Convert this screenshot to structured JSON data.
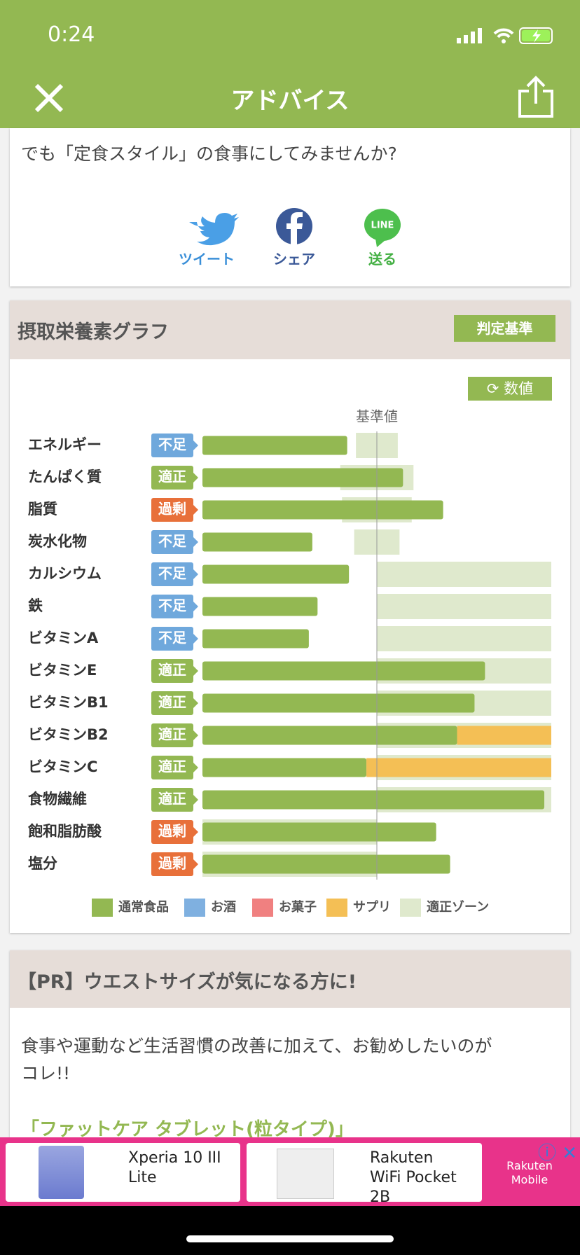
{
  "status_bar": {
    "time": "0:24"
  },
  "header": {
    "title": "アドバイス"
  },
  "advice": {
    "text": "でも「定食スタイル」の食事にしてみませんか?",
    "line_icon": "LINE",
    "share": [
      {
        "label": "ツイート"
      },
      {
        "label": "シェア"
      },
      {
        "label": "送る"
      }
    ]
  },
  "chart_data": {
    "type": "bar",
    "orientation": "horizontal",
    "title": "摂取栄養素グラフ",
    "criteria_button": "判定基準",
    "toggle_button": "数値",
    "reference_label": "基準値",
    "reference": 100,
    "xlim": [
      0,
      200
    ],
    "categories": [
      "エネルギー",
      "たんぱく質",
      "脂質",
      "炭水化物",
      "カルシウム",
      "鉄",
      "ビタミンA",
      "ビタミンE",
      "ビタミンB1",
      "ビタミンB2",
      "ビタミンC",
      "食物繊維",
      "飽和脂肪酸",
      "塩分"
    ],
    "status": [
      "不足",
      "適正",
      "過剰",
      "不足",
      "不足",
      "不足",
      "不足",
      "適正",
      "適正",
      "適正",
      "適正",
      "適正",
      "過剰",
      "過剰"
    ],
    "status_colors": [
      "#6fa8dc",
      "#93b852",
      "#e8703a",
      "#6fa8dc",
      "#6fa8dc",
      "#6fa8dc",
      "#6fa8dc",
      "#93b852",
      "#93b852",
      "#93b852",
      "#93b852",
      "#93b852",
      "#e8703a",
      "#e8703a"
    ],
    "series": [
      {
        "name": "通常食品",
        "color": "#93b852",
        "values": [
          83,
          115,
          138,
          63,
          84,
          66,
          61,
          162,
          156,
          146,
          94,
          196,
          134,
          142
        ]
      },
      {
        "name": "お酒",
        "color": "#7fb0e0",
        "values": [
          0,
          0,
          0,
          0,
          0,
          0,
          0,
          0,
          0,
          0,
          0,
          0,
          0,
          0
        ]
      },
      {
        "name": "お菓子",
        "color": "#f08080",
        "values": [
          0,
          0,
          0,
          0,
          0,
          0,
          0,
          0,
          0,
          0,
          0,
          0,
          0,
          0
        ]
      },
      {
        "name": "サプリ",
        "color": "#f4bf55",
        "values": [
          0,
          0,
          0,
          0,
          0,
          0,
          0,
          0,
          0,
          54,
          106,
          0,
          0,
          0
        ]
      }
    ],
    "zone_name": "適正ゾーン",
    "zone_color": "#dfe9cd",
    "zones": [
      [
        88,
        112
      ],
      [
        79,
        121
      ],
      [
        80,
        120
      ],
      [
        87,
        113
      ],
      [
        100,
        200
      ],
      [
        100,
        200
      ],
      [
        100,
        200
      ],
      [
        100,
        200
      ],
      [
        100,
        200
      ],
      [
        100,
        200
      ],
      [
        100,
        200
      ],
      [
        100,
        200
      ],
      [
        0,
        100
      ],
      [
        0,
        100
      ]
    ]
  },
  "pr": {
    "title": "【PR】ウエストサイズが気になる方に!",
    "body": [
      "食事や運動など生活習慣の改善に加えて、お勧めしたいのが",
      "コレ!!"
    ],
    "link": "「ファットケア タブレット(粒タイプ)」"
  },
  "ads": {
    "items": [
      {
        "label": "Xperia 10 III Lite"
      },
      {
        "label": "Rakuten WiFi Pocket 2B"
      }
    ],
    "logo": "Rakuten Mobile"
  }
}
